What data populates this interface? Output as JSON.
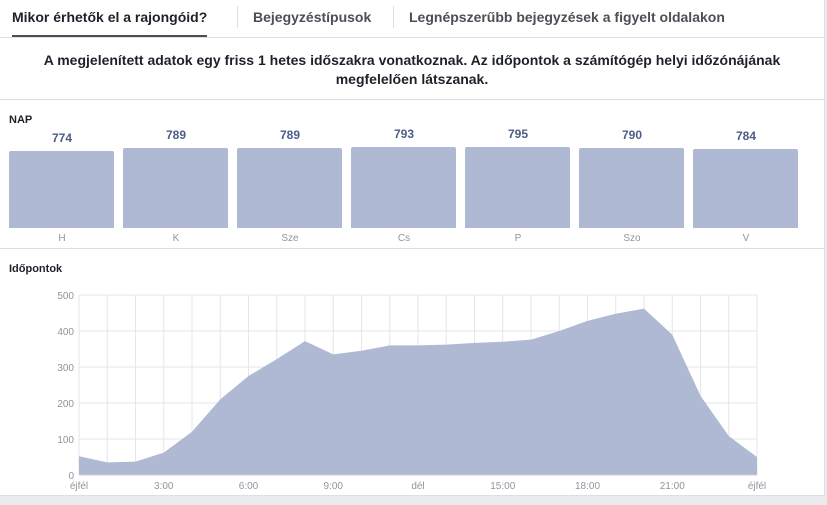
{
  "tabs": [
    {
      "label": "Mikor érhetők el a rajongóid?",
      "active": true
    },
    {
      "label": "Bejegyzéstípusok",
      "active": false
    },
    {
      "label": "Legnépszerűbb bejegyzések a figyelt oldalakon",
      "active": false
    }
  ],
  "notice": {
    "line1": "A megjelenített adatok egy friss 1 hetes időszakra vonatkoznak. Az időpontok a számítógép helyi időzónájának",
    "line2": "megfelelően látszanak."
  },
  "days_section": {
    "label": "NAP"
  },
  "times_section": {
    "label": "Időpontok"
  },
  "colors": {
    "fill": "#b0b9d4",
    "value_text": "#4b5c86",
    "grid": "#e5e6e9",
    "tick": "#90949c"
  },
  "chart_data": [
    {
      "type": "bar",
      "categories": [
        "H",
        "K",
        "Sze",
        "Cs",
        "P",
        "Szo",
        "V"
      ],
      "values": [
        774,
        789,
        789,
        793,
        795,
        790,
        784
      ],
      "title": "NAP"
    },
    {
      "type": "area",
      "title": "Időpontok",
      "x": [
        0,
        1,
        2,
        3,
        4,
        5,
        6,
        7,
        8,
        9,
        10,
        11,
        12,
        13,
        14,
        15,
        16,
        17,
        18,
        19,
        20,
        21,
        22,
        23,
        24
      ],
      "values": [
        52,
        35,
        37,
        62,
        120,
        210,
        275,
        322,
        372,
        335,
        345,
        360,
        360,
        362,
        367,
        370,
        376,
        400,
        428,
        448,
        462,
        390,
        220,
        108,
        50
      ],
      "ylim": [
        0,
        500
      ],
      "yticks": [
        "0",
        "100",
        "200",
        "300",
        "400",
        "500"
      ],
      "xtick_positions": [
        0,
        3,
        6,
        9,
        12,
        15,
        18,
        21,
        24
      ],
      "xtick_labels": [
        "éjfél",
        "3:00",
        "6:00",
        "9:00",
        "dél",
        "15:00",
        "18:00",
        "21:00",
        "éjfél"
      ]
    }
  ]
}
